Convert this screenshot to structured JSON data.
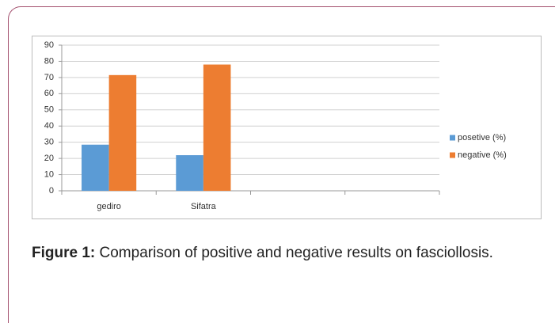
{
  "chart_data": {
    "type": "bar",
    "categories": [
      "gediro",
      "Sifatra",
      null,
      null
    ],
    "series": [
      {
        "name": "posetive (%)",
        "color": "#5b9bd5",
        "values": [
          28.5,
          22,
          null,
          null
        ]
      },
      {
        "name": "negative (%)",
        "color": "#ed7d31",
        "values": [
          71.5,
          78,
          null,
          null
        ]
      }
    ],
    "ylim": [
      0,
      90
    ],
    "yticks": [
      0,
      10,
      20,
      30,
      40,
      50,
      60,
      70,
      80,
      90
    ],
    "grid": true,
    "legend": "right"
  },
  "caption": {
    "label": "Figure 1:",
    "text": "Comparison of positive and negative results on fasciollosis."
  }
}
